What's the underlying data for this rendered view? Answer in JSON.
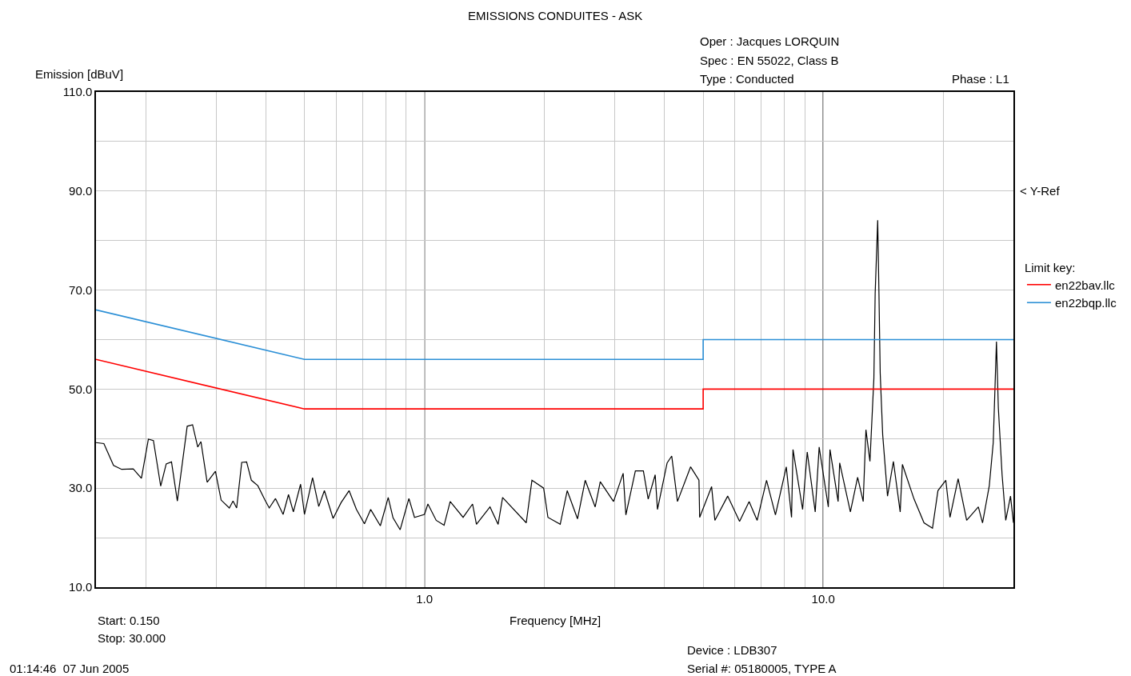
{
  "chart_data": {
    "type": "line",
    "title": "EMISSIONS CONDUITES - ASK",
    "xlabel": "Frequency [MHz]",
    "ylabel": "Emission [dBuV]",
    "legend_title": "Limit key:",
    "annotations": [
      "Oper : Jacques LORQUIN",
      "Spec : EN 55022, Class B",
      "Type : Conducted",
      "Phase : L1",
      "< Y-Ref",
      "Start: 0.150",
      "Stop: 30.000",
      "01:14:46  07 Jun 2005",
      "Device : LDB307",
      "Serial #: 05180005, TYPE A"
    ],
    "log": "x",
    "grid": true,
    "legend": "right",
    "marker": "none",
    "line_style": "solid",
    "xlim": [
      0.15,
      30
    ],
    "ylim": [
      10,
      110
    ],
    "xticks": [
      {
        "value": 0.2,
        "label": null
      },
      {
        "value": 0.3,
        "label": null
      },
      {
        "value": 0.4,
        "label": null
      },
      {
        "value": 0.5,
        "label": null
      },
      {
        "value": 0.6,
        "label": null
      },
      {
        "value": 0.7,
        "label": null
      },
      {
        "value": 0.8,
        "label": null
      },
      {
        "value": 0.9,
        "label": null
      },
      {
        "value": 1,
        "label": "1.0"
      },
      {
        "value": 2,
        "label": null
      },
      {
        "value": 3,
        "label": null
      },
      {
        "value": 4,
        "label": null
      },
      {
        "value": 5,
        "label": null
      },
      {
        "value": 6,
        "label": null
      },
      {
        "value": 7,
        "label": null
      },
      {
        "value": 8,
        "label": null
      },
      {
        "value": 9,
        "label": null
      },
      {
        "value": 10,
        "label": "10.0"
      },
      {
        "value": 20,
        "label": null
      }
    ],
    "yticks": [
      {
        "value": 10,
        "label": "10.0"
      },
      {
        "value": 20,
        "label": null
      },
      {
        "value": 30,
        "label": "30.0"
      },
      {
        "value": 40,
        "label": null
      },
      {
        "value": 50,
        "label": "50.0"
      },
      {
        "value": 60,
        "label": null
      },
      {
        "value": 70,
        "label": "70.0"
      },
      {
        "value": 80,
        "label": null
      },
      {
        "value": 90,
        "label": "90.0"
      },
      {
        "value": 100,
        "label": null
      },
      {
        "value": 110,
        "label": "110.0"
      }
    ],
    "series": [
      {
        "color": "#000000",
        "x": [
          0.15,
          0.157,
          0.166,
          0.174,
          0.186,
          0.195,
          0.203,
          0.209,
          0.218,
          0.225,
          0.232,
          0.24,
          0.254,
          0.262,
          0.27,
          0.275,
          0.285,
          0.299,
          0.309,
          0.324,
          0.331,
          0.338,
          0.348,
          0.358,
          0.368,
          0.382,
          0.398,
          0.408,
          0.423,
          0.442,
          0.456,
          0.469,
          0.489,
          0.5,
          0.524,
          0.543,
          0.561,
          0.59,
          0.618,
          0.647,
          0.675,
          0.707,
          0.733,
          0.775,
          0.811,
          0.834,
          0.869,
          0.914,
          0.944,
          1.0,
          1.02,
          1.07,
          1.12,
          1.16,
          1.25,
          1.32,
          1.35,
          1.46,
          1.53,
          1.57,
          1.8,
          1.86,
          1.99,
          2.04,
          2.19,
          2.28,
          2.42,
          2.53,
          2.68,
          2.76,
          2.98,
          3.15,
          3.2,
          3.38,
          3.54,
          3.64,
          3.79,
          3.84,
          4.06,
          4.17,
          4.31,
          4.65,
          4.88,
          4.9,
          5.25,
          5.35,
          5.76,
          6.17,
          6.52,
          6.83,
          7.21,
          7.59,
          8.08,
          8.33,
          8.4,
          8.88,
          9.12,
          9.55,
          9.77,
          10.3,
          10.4,
          10.9,
          11.0,
          11.7,
          12.2,
          12.6,
          12.8,
          13.1,
          13.4,
          13.5,
          13.7,
          13.8,
          13.9,
          14.1,
          14.5,
          15.0,
          15.6,
          15.8,
          16.9,
          17.9,
          18.8,
          19.4,
          20.3,
          20.8,
          21.8,
          22.9,
          24.5,
          25.1,
          26.1,
          26.7,
          27.2,
          27.5,
          28.1,
          28.7,
          29.5,
          30.0
        ],
        "values": [
          39.2,
          39,
          34.6,
          33.8,
          33.9,
          32.0,
          39.9,
          39.6,
          30.4,
          34.9,
          35.3,
          27.4,
          42.5,
          42.8,
          38.3,
          39.4,
          31.2,
          33.4,
          27.6,
          26.0,
          27.4,
          26.0,
          35.2,
          35.3,
          31.6,
          30.5,
          27.6,
          26.0,
          27.9,
          24.7,
          28.7,
          25.2,
          30.8,
          24.7,
          32.1,
          26.3,
          29.5,
          23.9,
          27.1,
          29.5,
          25.7,
          22.8,
          25.7,
          22.4,
          28.1,
          24.0,
          21.6,
          27.9,
          24.1,
          24.7,
          26.8,
          23.5,
          22.5,
          27.3,
          24.1,
          26.8,
          22.7,
          26.2,
          22.7,
          28.1,
          23.0,
          31.6,
          30.0,
          24.1,
          22.7,
          29.5,
          23.8,
          31.6,
          26.2,
          31.3,
          27.3,
          33.0,
          24.6,
          33.5,
          33.5,
          27.8,
          32.7,
          25.7,
          35.1,
          36.5,
          27.3,
          34.3,
          31.6,
          24.1,
          30.3,
          23.5,
          28.4,
          23.3,
          27.3,
          23.5,
          31.6,
          24.6,
          34.3,
          24.1,
          37.8,
          25.7,
          37.3,
          25.2,
          38.3,
          26.2,
          37.8,
          27.3,
          35.1,
          25.2,
          32.2,
          27.3,
          41.8,
          35.4,
          52.1,
          69.3,
          84.1,
          69.3,
          53.2,
          40.8,
          28.4,
          35.4,
          25.2,
          34.8,
          27.8,
          23.0,
          21.9,
          29.5,
          31.6,
          24.1,
          31.9,
          23.5,
          26.2,
          23.0,
          30.5,
          39.2,
          59.6,
          46.2,
          32.7,
          23.5,
          28.4,
          23.0
        ]
      },
      {
        "name": "en22bav.llc",
        "color": "#ff0000",
        "x": [
          0.15,
          0.5,
          5,
          5,
          30
        ],
        "values": [
          56,
          46,
          46,
          50,
          50
        ]
      },
      {
        "name": "en22bqp.llc",
        "color": "#2b8fd6",
        "x": [
          0.15,
          0.5,
          5,
          5,
          30
        ],
        "values": [
          66,
          56,
          56,
          60,
          60
        ]
      }
    ]
  }
}
